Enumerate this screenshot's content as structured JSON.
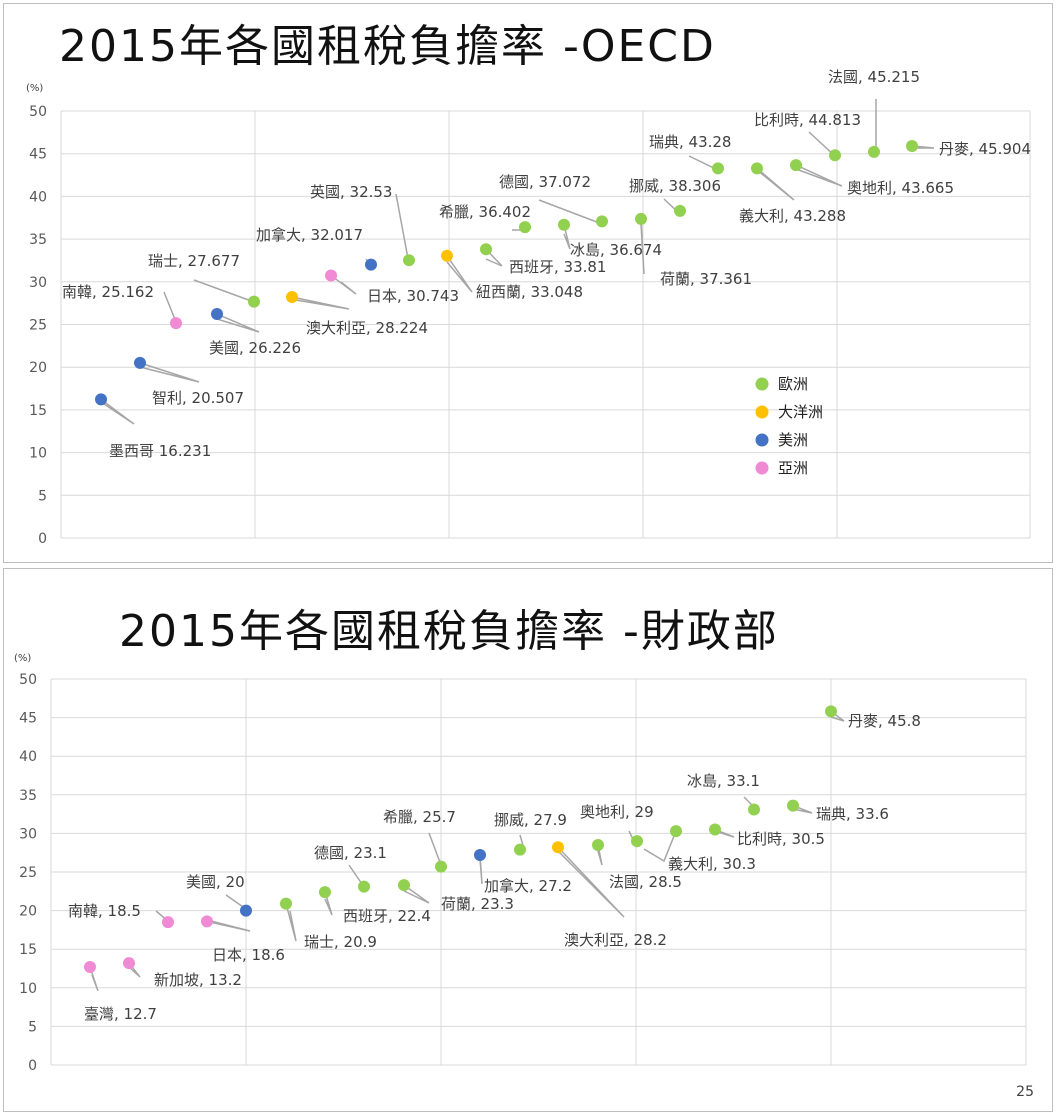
{
  "page_number": "25",
  "colors": {
    "歐洲": "#92d050",
    "大洋洲": "#ffc000",
    "美洲": "#4472c4",
    "亞洲": "#f08ad4"
  },
  "chart_data": [
    {
      "type": "scatter",
      "title": "2015年各國租稅負擔率 -OECD",
      "unit": "(%)",
      "ylim": [
        0,
        50
      ],
      "yticks": [
        0,
        5,
        10,
        15,
        20,
        25,
        30,
        35,
        40,
        45,
        50
      ],
      "grid": true,
      "legend": {
        "placement": "right",
        "entries": [
          "歐洲",
          "大洋洲",
          "美洲",
          "亞洲"
        ]
      },
      "points": [
        {
          "rank": 1,
          "label": "墨西哥 16.231",
          "value": 16.231,
          "group": "美洲"
        },
        {
          "rank": 2,
          "label": "智利, 20.507",
          "value": 20.507,
          "group": "美洲"
        },
        {
          "rank": 3,
          "label": "南韓, 25.162",
          "value": 25.162,
          "group": "亞洲"
        },
        {
          "rank": 4,
          "label": "美國, 26.226",
          "value": 26.226,
          "group": "美洲"
        },
        {
          "rank": 5,
          "label": "瑞士, 27.677",
          "value": 27.677,
          "group": "歐洲"
        },
        {
          "rank": 6,
          "label": "澳大利亞, 28.224",
          "value": 28.224,
          "group": "大洋洲"
        },
        {
          "rank": 7,
          "label": "日本, 30.743",
          "value": 30.743,
          "group": "亞洲"
        },
        {
          "rank": 8,
          "label": "加拿大, 32.017",
          "value": 32.017,
          "group": "美洲"
        },
        {
          "rank": 9,
          "label": "英國, 32.53",
          "value": 32.53,
          "group": "歐洲"
        },
        {
          "rank": 10,
          "label": "紐西蘭, 33.048",
          "value": 33.048,
          "group": "大洋洲"
        },
        {
          "rank": 11,
          "label": "西班牙, 33.81",
          "value": 33.81,
          "group": "歐洲"
        },
        {
          "rank": 12,
          "label": "希臘, 36.402",
          "value": 36.402,
          "group": "歐洲"
        },
        {
          "rank": 13,
          "label": "冰島, 36.674",
          "value": 36.674,
          "group": "歐洲"
        },
        {
          "rank": 14,
          "label": "德國, 37.072",
          "value": 37.072,
          "group": "歐洲"
        },
        {
          "rank": 15,
          "label": "荷蘭, 37.361",
          "value": 37.361,
          "group": "歐洲"
        },
        {
          "rank": 16,
          "label": "挪威, 38.306",
          "value": 38.306,
          "group": "歐洲"
        },
        {
          "rank": 17,
          "label": "瑞典, 43.28",
          "value": 43.28,
          "group": "歐洲"
        },
        {
          "rank": 18,
          "label": "義大利, 43.288",
          "value": 43.288,
          "group": "歐洲"
        },
        {
          "rank": 19,
          "label": "奧地利, 43.665",
          "value": 43.665,
          "group": "歐洲"
        },
        {
          "rank": 20,
          "label": "比利時, 44.813",
          "value": 44.813,
          "group": "歐洲"
        },
        {
          "rank": 21,
          "label": "法國, 45.215",
          "value": 45.215,
          "group": "歐洲"
        },
        {
          "rank": 22,
          "label": "丹麥, 45.904",
          "value": 45.904,
          "group": "歐洲"
        }
      ]
    },
    {
      "type": "scatter",
      "title": "2015年各國租稅負擔率 -財政部",
      "unit": "(%)",
      "ylim": [
        0,
        50
      ],
      "yticks": [
        0,
        5,
        10,
        15,
        20,
        25,
        30,
        35,
        40,
        45,
        50
      ],
      "grid": true,
      "points": [
        {
          "rank": 1,
          "label": "臺灣, 12.7",
          "value": 12.7,
          "group": "亞洲"
        },
        {
          "rank": 2,
          "label": "新加坡, 13.2",
          "value": 13.2,
          "group": "亞洲"
        },
        {
          "rank": 3,
          "label": "南韓, 18.5",
          "value": 18.5,
          "group": "亞洲"
        },
        {
          "rank": 4,
          "label": "日本, 18.6",
          "value": 18.6,
          "group": "亞洲"
        },
        {
          "rank": 5,
          "label": "美國, 20",
          "value": 20,
          "group": "美洲"
        },
        {
          "rank": 6,
          "label": "瑞士, 20.9",
          "value": 20.9,
          "group": "歐洲"
        },
        {
          "rank": 7,
          "label": "西班牙, 22.4",
          "value": 22.4,
          "group": "歐洲"
        },
        {
          "rank": 8,
          "label": "德國, 23.1",
          "value": 23.1,
          "group": "歐洲"
        },
        {
          "rank": 9,
          "label": "荷蘭, 23.3",
          "value": 23.3,
          "group": "歐洲"
        },
        {
          "rank": 10,
          "label": "希臘, 25.7",
          "value": 25.7,
          "group": "歐洲"
        },
        {
          "rank": 11,
          "label": "加拿大, 27.2",
          "value": 27.2,
          "group": "美洲"
        },
        {
          "rank": 12,
          "label": "挪威, 27.9",
          "value": 27.9,
          "group": "歐洲"
        },
        {
          "rank": 13,
          "label": "澳大利亞, 28.2",
          "value": 28.2,
          "group": "大洋洲"
        },
        {
          "rank": 14,
          "label": "法國, 28.5",
          "value": 28.5,
          "group": "歐洲"
        },
        {
          "rank": 15,
          "label": "奧地利, 29",
          "value": 29,
          "group": "歐洲"
        },
        {
          "rank": 16,
          "label": "義大利, 30.3",
          "value": 30.3,
          "group": "歐洲"
        },
        {
          "rank": 17,
          "label": "比利時, 30.5",
          "value": 30.5,
          "group": "歐洲"
        },
        {
          "rank": 18,
          "label": "冰島, 33.1",
          "value": 33.1,
          "group": "歐洲"
        },
        {
          "rank": 19,
          "label": "瑞典, 33.6",
          "value": 33.6,
          "group": "歐洲"
        },
        {
          "rank": 20,
          "label": "丹麥, 45.8",
          "value": 45.8,
          "group": "歐洲"
        }
      ]
    }
  ]
}
